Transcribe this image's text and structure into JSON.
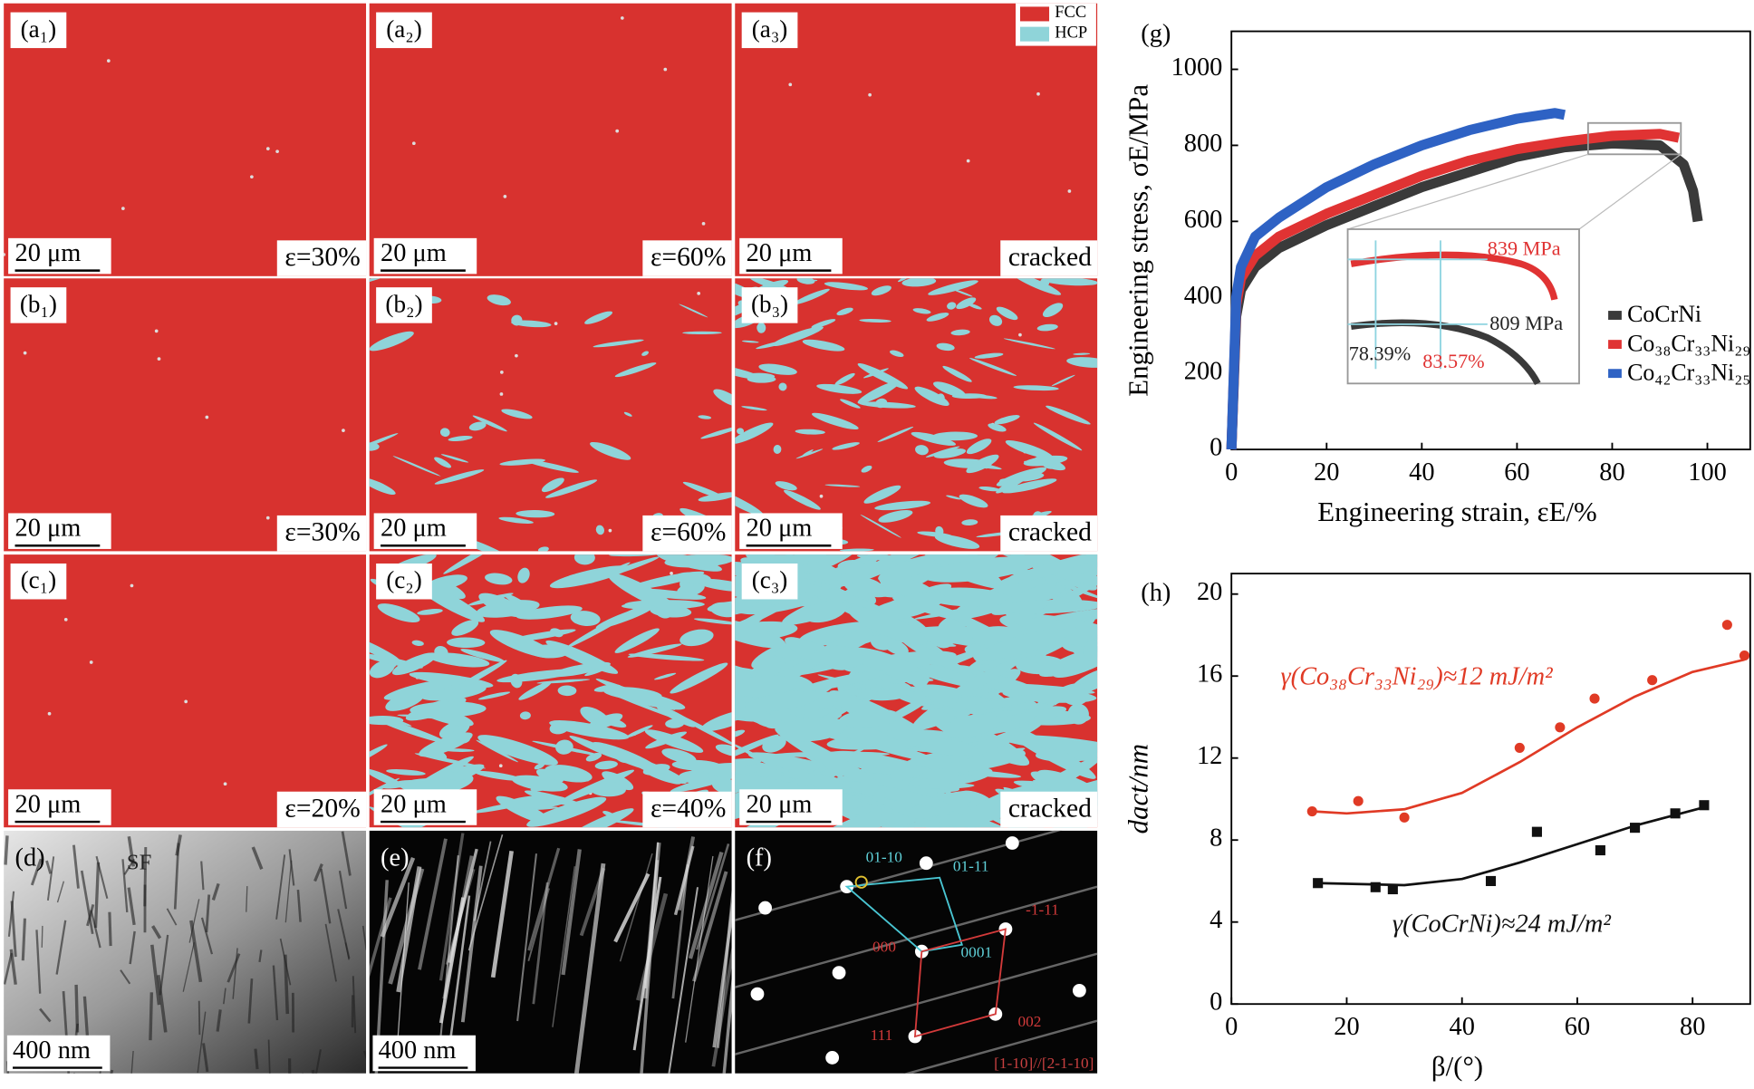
{
  "panels": [
    {
      "label": "(a₁)",
      "scale": "20 μm",
      "note": "ε=30%"
    },
    {
      "label": "(a₂)",
      "scale": "20 μm",
      "note": "ε=60%"
    },
    {
      "label": "(a₃)",
      "scale": "20 μm",
      "note": "cracked"
    },
    {
      "label": "(b₁)",
      "scale": "20 μm",
      "note": "ε=30%"
    },
    {
      "label": "(b₂)",
      "scale": "20 μm",
      "note": "ε=60%"
    },
    {
      "label": "(b₃)",
      "scale": "20 μm",
      "note": "cracked"
    },
    {
      "label": "(c₁)",
      "scale": "20 μm",
      "note": "ε=20%"
    },
    {
      "label": "(c₂)",
      "scale": "20 μm",
      "note": "ε=40%"
    },
    {
      "label": "(c₃)",
      "scale": "20 μm",
      "note": "cracked"
    }
  ],
  "phase_legend": [
    {
      "name": "FCC",
      "color": "#d8322f"
    },
    {
      "name": "HCP",
      "color": "#8fd4d9"
    }
  ],
  "tem": [
    {
      "label": "(d)",
      "scale": "400 nm",
      "note": "SF"
    },
    {
      "label": "(e)",
      "scale": "400 nm"
    },
    {
      "label": "(f)",
      "spots": [
        "01-10",
        "01-11",
        "-1-11",
        "000",
        "0001",
        "111",
        "002"
      ],
      "zone": "[1-10]//[2-1-10]"
    }
  ],
  "chart_data": [
    {
      "type": "line",
      "panel": "(g)",
      "x_label": "Engineering strain, εE/%",
      "y_label": "Engineering stress, σE/MPa",
      "xlim": [
        0,
        109
      ],
      "ylim": [
        0,
        1100
      ],
      "xticks": [
        0,
        20,
        40,
        60,
        80,
        100
      ],
      "yticks": [
        0,
        200,
        400,
        600,
        800,
        1000
      ],
      "series": [
        {
          "name": "CoCrNi",
          "color": "#3a3a3a",
          "x": [
            0,
            1,
            2,
            5,
            10,
            20,
            30,
            40,
            50,
            60,
            70,
            80,
            90,
            95,
            97,
            98
          ],
          "values": [
            0,
            350,
            420,
            480,
            530,
            590,
            640,
            690,
            730,
            770,
            795,
            805,
            800,
            750,
            680,
            600
          ]
        },
        {
          "name": "Co₃₈Cr₃₃Ni₂₉",
          "color": "#e03333",
          "x": [
            0,
            1,
            2,
            5,
            10,
            20,
            30,
            40,
            50,
            60,
            70,
            80,
            90,
            94
          ],
          "values": [
            0,
            380,
            450,
            510,
            560,
            620,
            670,
            720,
            760,
            790,
            810,
            825,
            830,
            820
          ]
        },
        {
          "name": "Co₄₂Cr₃₃Ni₂₅",
          "color": "#2e62c4",
          "x": [
            0,
            1,
            2,
            5,
            10,
            20,
            30,
            40,
            50,
            60,
            68,
            70
          ],
          "values": [
            0,
            400,
            480,
            560,
            610,
            690,
            750,
            800,
            840,
            870,
            885,
            880
          ]
        }
      ],
      "annotations": [
        "839 MPa",
        "809 MPa",
        "78.39%",
        "83.57%"
      ]
    },
    {
      "type": "scatter",
      "panel": "(h)",
      "x_label": "β/(°)",
      "y_label": "dact/nm",
      "xlim": [
        0,
        90
      ],
      "ylim": [
        0,
        21
      ],
      "xticks": [
        0,
        20,
        40,
        60,
        80
      ],
      "yticks": [
        0,
        4,
        8,
        12,
        16,
        20
      ],
      "series": [
        {
          "color": "#e03a25",
          "marker": "circle",
          "x": [
            14,
            22,
            30,
            50,
            57,
            63,
            73,
            86,
            89
          ],
          "values": [
            9.4,
            9.9,
            9.1,
            12.5,
            13.5,
            14.9,
            15.8,
            18.5,
            17.0
          ]
        },
        {
          "color": "#111111",
          "marker": "square",
          "x": [
            15,
            25,
            28,
            45,
            53,
            64,
            70,
            77,
            82
          ],
          "values": [
            5.9,
            5.7,
            5.6,
            6.0,
            8.4,
            7.5,
            8.6,
            9.3,
            9.7
          ]
        }
      ],
      "fits": [
        {
          "color": "#e03a25",
          "x": [
            14,
            20,
            30,
            40,
            50,
            60,
            70,
            80,
            89
          ],
          "values": [
            9.4,
            9.3,
            9.5,
            10.3,
            11.8,
            13.5,
            15.0,
            16.2,
            16.8
          ]
        },
        {
          "color": "#111111",
          "x": [
            15,
            30,
            40,
            50,
            60,
            70,
            82
          ],
          "values": [
            5.9,
            5.8,
            6.1,
            6.9,
            7.8,
            8.7,
            9.6
          ]
        }
      ],
      "annotations": [
        {
          "text": "γ(Co₃₈Cr₃₃Ni₂₉)≈12 mJ/m²",
          "color": "#e03a25"
        },
        {
          "text": "γ(CoCrNi)≈24 mJ/m²",
          "color": "#111111"
        }
      ]
    }
  ]
}
